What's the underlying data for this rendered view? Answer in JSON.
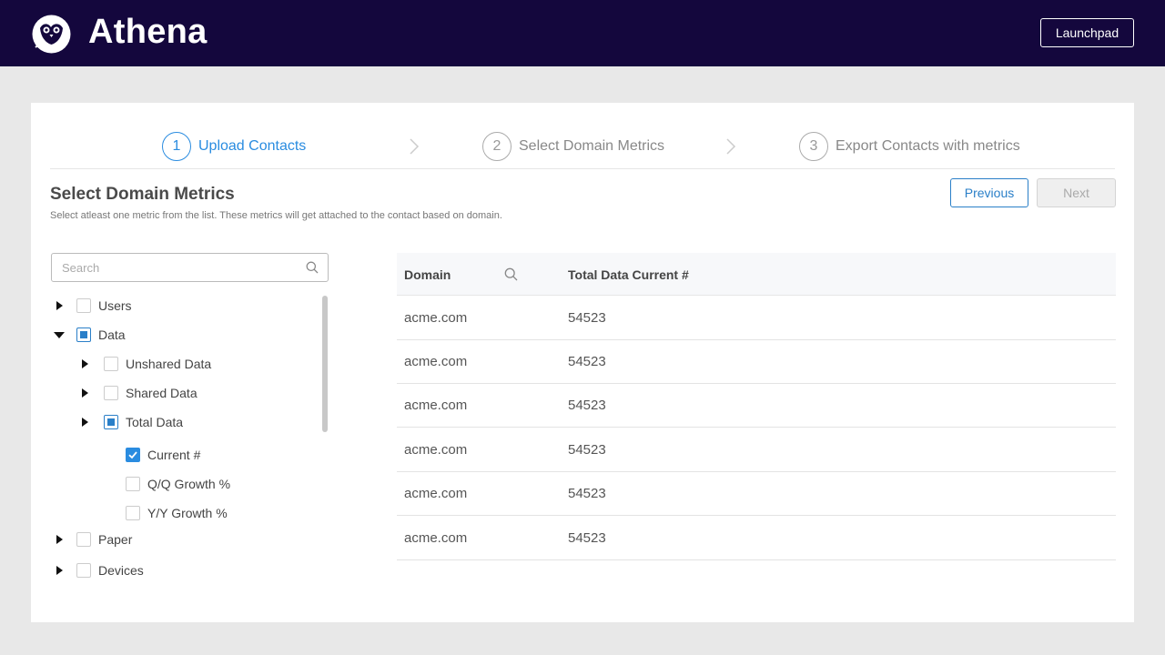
{
  "app": {
    "title": "Athena",
    "launchpad_label": "Launchpad",
    "brand_color": "#14073d",
    "accent_color": "#2a8ce0"
  },
  "steps": [
    {
      "number": "1",
      "label": "Upload Contacts",
      "active": true
    },
    {
      "number": "2",
      "label": "Select Domain Metrics",
      "active": false
    },
    {
      "number": "3",
      "label": "Export Contacts with metrics",
      "active": false
    }
  ],
  "section": {
    "title": "Select Domain Metrics",
    "subtitle": "Select atleast one metric from the list. These metrics will get attached to the contact based on domain."
  },
  "actions": {
    "previous_label": "Previous",
    "next_label": "Next"
  },
  "search": {
    "placeholder": "Search",
    "value": ""
  },
  "tree": [
    {
      "label": "Users",
      "state": "unchecked",
      "expander": "collapsed"
    },
    {
      "label": "Data",
      "state": "partial",
      "expander": "expanded"
    },
    {
      "label": "Unshared Data",
      "state": "unchecked",
      "expander": "collapsed"
    },
    {
      "label": "Shared Data",
      "state": "unchecked",
      "expander": "collapsed"
    },
    {
      "label": "Total Data",
      "state": "partial",
      "expander": "collapsed"
    },
    {
      "label": "Current #",
      "state": "checked",
      "expander": "none"
    },
    {
      "label": "Q/Q Growth %",
      "state": "unchecked",
      "expander": "none"
    },
    {
      "label": "Y/Y Growth %",
      "state": "unchecked",
      "expander": "none"
    },
    {
      "label": "Paper",
      "state": "unchecked",
      "expander": "collapsed"
    },
    {
      "label": "Devices",
      "state": "unchecked",
      "expander": "collapsed"
    }
  ],
  "table": {
    "columns": [
      "Domain",
      "Total Data Current #"
    ],
    "rows": [
      [
        "acme.com",
        "54523"
      ],
      [
        "acme.com",
        "54523"
      ],
      [
        "acme.com",
        "54523"
      ],
      [
        "acme.com",
        "54523"
      ],
      [
        "acme.com",
        "54523"
      ],
      [
        "acme.com",
        "54523"
      ]
    ]
  }
}
